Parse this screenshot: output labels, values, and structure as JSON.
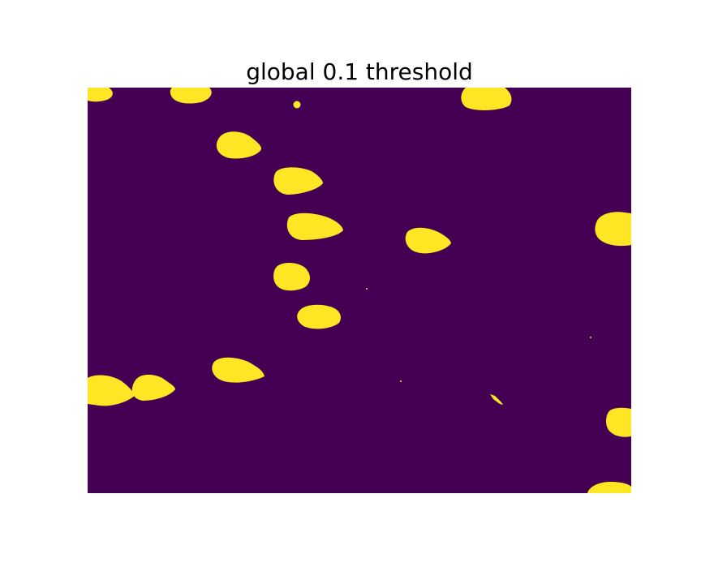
{
  "figure": {
    "title": "global 0.1 threshold"
  },
  "image": {
    "description_kind": "binary threshold mask",
    "background_color": "#440154",
    "foreground_color": "#fde725",
    "axes_visible": false
  }
}
